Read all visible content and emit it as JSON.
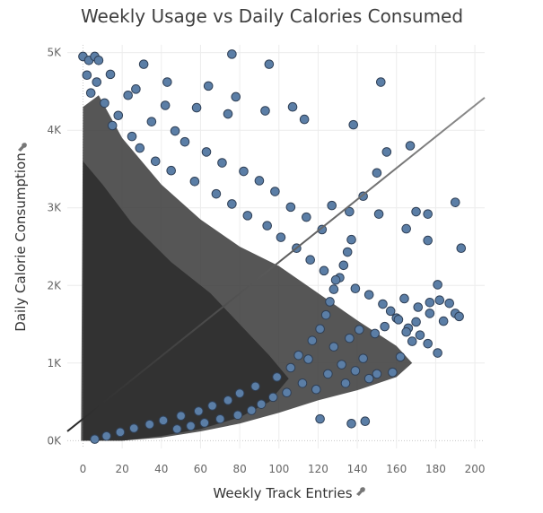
{
  "chart_data": {
    "type": "scatter",
    "title": "Weekly Usage vs Daily Calories Consumed",
    "xlabel": "Weekly Track Entries",
    "ylabel": "Daily Calorie Consumption",
    "xlim": [
      -8,
      205
    ],
    "ylim": [
      -100,
      5100
    ],
    "x_ticks": [
      0,
      20,
      40,
      60,
      80,
      100,
      120,
      140,
      160,
      180,
      200
    ],
    "x_tick_labels": [
      "0",
      "20",
      "40",
      "60",
      "80",
      "100",
      "120",
      "140",
      "160",
      "180",
      "200"
    ],
    "y_ticks": [
      0,
      1000,
      2000,
      3000,
      4000,
      5000
    ],
    "y_tick_labels": [
      "0K",
      "1K",
      "2K",
      "3K",
      "4K",
      "5K"
    ],
    "grid": true,
    "legend": "none",
    "colors": {
      "point_fill": "#5b7ea6",
      "point_stroke": "#2f3f55",
      "dense_fill": "#3a3a3a",
      "trend_line_start": "#2a2a2a",
      "trend_line_end": "#8c8c8c",
      "title": "#3f3f3f",
      "axis_title": "#333333",
      "tick": "#666666",
      "grid": "#ececec"
    },
    "trend_line": {
      "x0": -8,
      "y0": 120,
      "x1": 205,
      "y1": 4420
    },
    "series": [
      {
        "points": [
          [
            0,
            4950
          ],
          [
            3,
            4900
          ],
          [
            6,
            4950
          ],
          [
            8,
            4900
          ],
          [
            14,
            4720
          ],
          [
            31,
            4850
          ],
          [
            76,
            4980
          ],
          [
            95,
            4850
          ],
          [
            152,
            4620
          ],
          [
            43,
            4620
          ],
          [
            64,
            4570
          ],
          [
            78,
            4430
          ],
          [
            23,
            4450
          ],
          [
            27,
            4530
          ],
          [
            42,
            4320
          ],
          [
            58,
            4290
          ],
          [
            74,
            4210
          ],
          [
            93,
            4250
          ],
          [
            107,
            4300
          ],
          [
            113,
            4140
          ],
          [
            138,
            4070
          ],
          [
            167,
            3800
          ],
          [
            155,
            3720
          ],
          [
            150,
            3450
          ],
          [
            143,
            3150
          ],
          [
            127,
            3030
          ],
          [
            136,
            2950
          ],
          [
            170,
            2950
          ],
          [
            176,
            2920
          ],
          [
            190,
            3070
          ],
          [
            193,
            2480
          ],
          [
            176,
            2580
          ],
          [
            165,
            2730
          ],
          [
            151,
            2920
          ],
          [
            181,
            2010
          ],
          [
            164,
            1830
          ],
          [
            171,
            1720
          ],
          [
            177,
            1780
          ],
          [
            182,
            1810
          ],
          [
            187,
            1770
          ],
          [
            190,
            1640
          ],
          [
            192,
            1600
          ],
          [
            184,
            1540
          ],
          [
            177,
            1640
          ],
          [
            170,
            1530
          ],
          [
            166,
            1450
          ],
          [
            160,
            1580
          ],
          [
            154,
            1470
          ],
          [
            149,
            1380
          ],
          [
            141,
            1430
          ],
          [
            136,
            1320
          ],
          [
            168,
            1280
          ],
          [
            181,
            1130
          ],
          [
            162,
            1080
          ],
          [
            158,
            880
          ],
          [
            146,
            800
          ],
          [
            139,
            900
          ],
          [
            134,
            740
          ],
          [
            125,
            860
          ],
          [
            119,
            660
          ],
          [
            112,
            740
          ],
          [
            104,
            620
          ],
          [
            97,
            560
          ],
          [
            91,
            470
          ],
          [
            86,
            390
          ],
          [
            79,
            330
          ],
          [
            70,
            280
          ],
          [
            62,
            230
          ],
          [
            55,
            190
          ],
          [
            48,
            150
          ],
          [
            121,
            280
          ],
          [
            137,
            220
          ],
          [
            144,
            250
          ],
          [
            150,
            860
          ],
          [
            110,
            1100
          ],
          [
            117,
            1290
          ],
          [
            121,
            1440
          ],
          [
            124,
            1620
          ],
          [
            126,
            1790
          ],
          [
            128,
            1950
          ],
          [
            131,
            2100
          ],
          [
            133,
            2260
          ],
          [
            135,
            2430
          ],
          [
            137,
            2590
          ],
          [
            122,
            2720
          ],
          [
            114,
            2880
          ],
          [
            106,
            3010
          ],
          [
            98,
            3210
          ],
          [
            90,
            3350
          ],
          [
            82,
            3470
          ],
          [
            71,
            3580
          ],
          [
            63,
            3720
          ],
          [
            52,
            3850
          ],
          [
            47,
            3990
          ],
          [
            35,
            4110
          ],
          [
            18,
            4190
          ],
          [
            11,
            4350
          ],
          [
            4,
            4480
          ],
          [
            2,
            4710
          ],
          [
            7,
            4620
          ],
          [
            15,
            4060
          ],
          [
            25,
            3920
          ],
          [
            29,
            3770
          ],
          [
            37,
            3600
          ],
          [
            45,
            3480
          ],
          [
            57,
            3340
          ],
          [
            68,
            3180
          ],
          [
            76,
            3050
          ],
          [
            84,
            2900
          ],
          [
            94,
            2770
          ],
          [
            101,
            2620
          ],
          [
            109,
            2480
          ],
          [
            116,
            2330
          ],
          [
            123,
            2190
          ],
          [
            129,
            2070
          ],
          [
            139,
            1960
          ],
          [
            146,
            1880
          ],
          [
            153,
            1760
          ],
          [
            157,
            1670
          ],
          [
            161,
            1560
          ],
          [
            165,
            1400
          ],
          [
            172,
            1360
          ],
          [
            176,
            1250
          ],
          [
            143,
            1060
          ],
          [
            132,
            980
          ],
          [
            128,
            1210
          ],
          [
            115,
            1050
          ],
          [
            106,
            940
          ],
          [
            99,
            820
          ],
          [
            88,
            700
          ],
          [
            80,
            610
          ],
          [
            74,
            520
          ],
          [
            66,
            450
          ],
          [
            59,
            380
          ],
          [
            50,
            320
          ],
          [
            41,
            260
          ],
          [
            34,
            210
          ],
          [
            26,
            160
          ],
          [
            19,
            110
          ],
          [
            12,
            60
          ],
          [
            6,
            20
          ]
        ]
      }
    ]
  }
}
